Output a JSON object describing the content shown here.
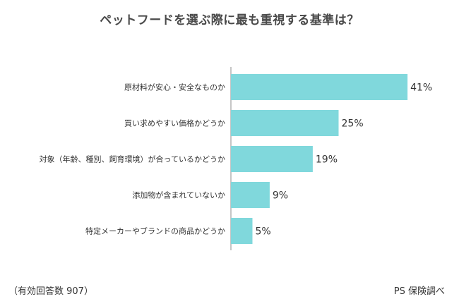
{
  "title": "ペットフードを選ぶ際に最も重視する基準は？",
  "footer": {
    "sample_note": "（有効回答数 907）",
    "source": "PS 保険調べ"
  },
  "colors": {
    "bar": "#80d8dc",
    "axis": "#8c8c8c",
    "text": "#333333"
  },
  "chart_data": {
    "type": "bar",
    "orientation": "horizontal",
    "title": "ペットフードを選ぶ際に最も重視する基準は？",
    "categories": [
      "原材料が安心・安全なものか",
      "買い求めやすい価格かどうか",
      "対象（年齢、種別、飼育環境）が合っているかどうか",
      "添加物が含まれていないか",
      "特定メーカーやブランドの商品かどうか"
    ],
    "values": [
      41,
      25,
      19,
      9,
      5
    ],
    "value_labels": [
      "41%",
      "25%",
      "19%",
      "9%",
      "5%"
    ],
    "unit": "%",
    "xlim": [
      0,
      50
    ],
    "grid": false,
    "legend": "none"
  }
}
